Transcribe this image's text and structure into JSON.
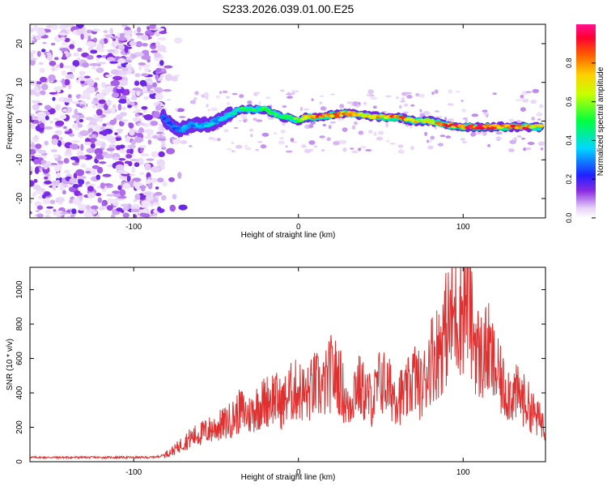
{
  "title": "S233.2026.039.01.00.E25",
  "chart_data": [
    {
      "type": "heatmap",
      "xlabel": "Height of straight line (km)",
      "ylabel": "Frequency (Hz)",
      "xlim": [
        -163,
        150
      ],
      "ylim": [
        -25,
        25
      ],
      "x_ticks": [
        -100,
        0,
        100
      ],
      "y_ticks": [
        -20,
        -10,
        0,
        10,
        20
      ],
      "colorbar": {
        "label": "Normalized spectral amplitude",
        "range": [
          0,
          1
        ],
        "ticks": [
          "0.0",
          "0.2",
          "0.4",
          "0.6",
          "0.8"
        ]
      },
      "ridge": {
        "x": [
          -82,
          -75,
          -70,
          -65,
          -60,
          -55,
          -50,
          -45,
          -40,
          -35,
          -30,
          -25,
          -20,
          -15,
          -10,
          -5,
          0,
          5,
          10,
          20,
          30,
          40,
          50,
          60,
          70,
          80,
          90,
          100,
          110,
          120,
          130,
          140,
          148
        ],
        "freq": [
          1,
          -2,
          -2,
          -1,
          -1,
          -1,
          0,
          1,
          2,
          3,
          3,
          3,
          3,
          2,
          1,
          1,
          0,
          1,
          1,
          1.5,
          2,
          1.5,
          1,
          1,
          0,
          0,
          -1,
          -1.5,
          -1.5,
          -1.5,
          -1.5,
          -1.5,
          -1.5
        ],
        "amplitude": [
          0.25,
          0.3,
          0.35,
          0.3,
          0.35,
          0.4,
          0.35,
          0.4,
          0.45,
          0.5,
          0.55,
          0.5,
          0.55,
          0.55,
          0.5,
          0.55,
          0.6,
          0.7,
          0.9,
          0.8,
          0.85,
          0.75,
          0.8,
          0.9,
          0.75,
          0.7,
          0.85,
          0.95,
          0.9,
          0.85,
          0.9,
          0.85,
          0.7
        ]
      }
    },
    {
      "type": "line",
      "xlabel": "Height of straight line (km)",
      "ylabel": "SNR (10 * v/v)",
      "xlim": [
        -163,
        150
      ],
      "ylim": [
        0,
        1130
      ],
      "x_ticks": [
        -100,
        0,
        100
      ],
      "y_ticks": [
        0,
        200,
        400,
        600,
        800,
        1000
      ],
      "series": [
        {
          "name": "SNR",
          "color": "#e03030",
          "x": [
            -163,
            -150,
            -140,
            -130,
            -120,
            -110,
            -100,
            -90,
            -85,
            -80,
            -75,
            -70,
            -65,
            -60,
            -55,
            -50,
            -45,
            -40,
            -35,
            -30,
            -25,
            -20,
            -15,
            -10,
            -5,
            0,
            5,
            10,
            15,
            20,
            25,
            30,
            35,
            40,
            45,
            50,
            55,
            60,
            65,
            70,
            75,
            80,
            85,
            90,
            95,
            100,
            103,
            105,
            110,
            115,
            120,
            125,
            130,
            135,
            140,
            145,
            150
          ],
          "y": [
            25,
            25,
            25,
            25,
            25,
            25,
            25,
            25,
            30,
            45,
            70,
            110,
            140,
            160,
            180,
            200,
            220,
            250,
            300,
            270,
            320,
            350,
            380,
            330,
            400,
            420,
            380,
            450,
            420,
            520,
            480,
            300,
            460,
            400,
            350,
            480,
            420,
            390,
            380,
            500,
            420,
            600,
            650,
            780,
            850,
            900,
            1000,
            800,
            600,
            650,
            520,
            420,
            400,
            380,
            320,
            250,
            220
          ]
        }
      ]
    }
  ]
}
